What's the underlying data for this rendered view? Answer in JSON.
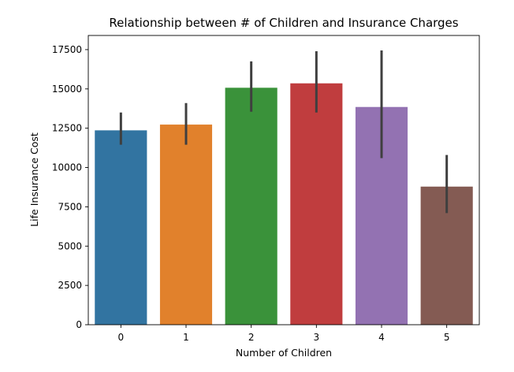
{
  "chart_data": {
    "type": "bar",
    "title": "Relationship between # of Children and Insurance Charges",
    "xlabel": "Number of Children",
    "ylabel": "Life Insurance Cost",
    "categories": [
      "0",
      "1",
      "2",
      "3",
      "4",
      "5"
    ],
    "values": [
      12365,
      12731,
      15074,
      15355,
      13851,
      8786
    ],
    "error_low": [
      11450,
      11450,
      13550,
      13500,
      10600,
      7100
    ],
    "error_high": [
      13500,
      14100,
      16750,
      17400,
      17450,
      10800
    ],
    "colors": [
      "#3274a1",
      "#e1812c",
      "#3a923a",
      "#c03d3e",
      "#9372b2",
      "#845b53"
    ],
    "ylim": [
      0,
      18400
    ],
    "yticks": [
      0,
      2500,
      5000,
      7500,
      10000,
      12500,
      15000,
      17500
    ],
    "ytick_labels": [
      "0",
      "2500",
      "5000",
      "7500",
      "10000",
      "12500",
      "15000",
      "17500"
    ],
    "grid": false,
    "legend": "none"
  }
}
